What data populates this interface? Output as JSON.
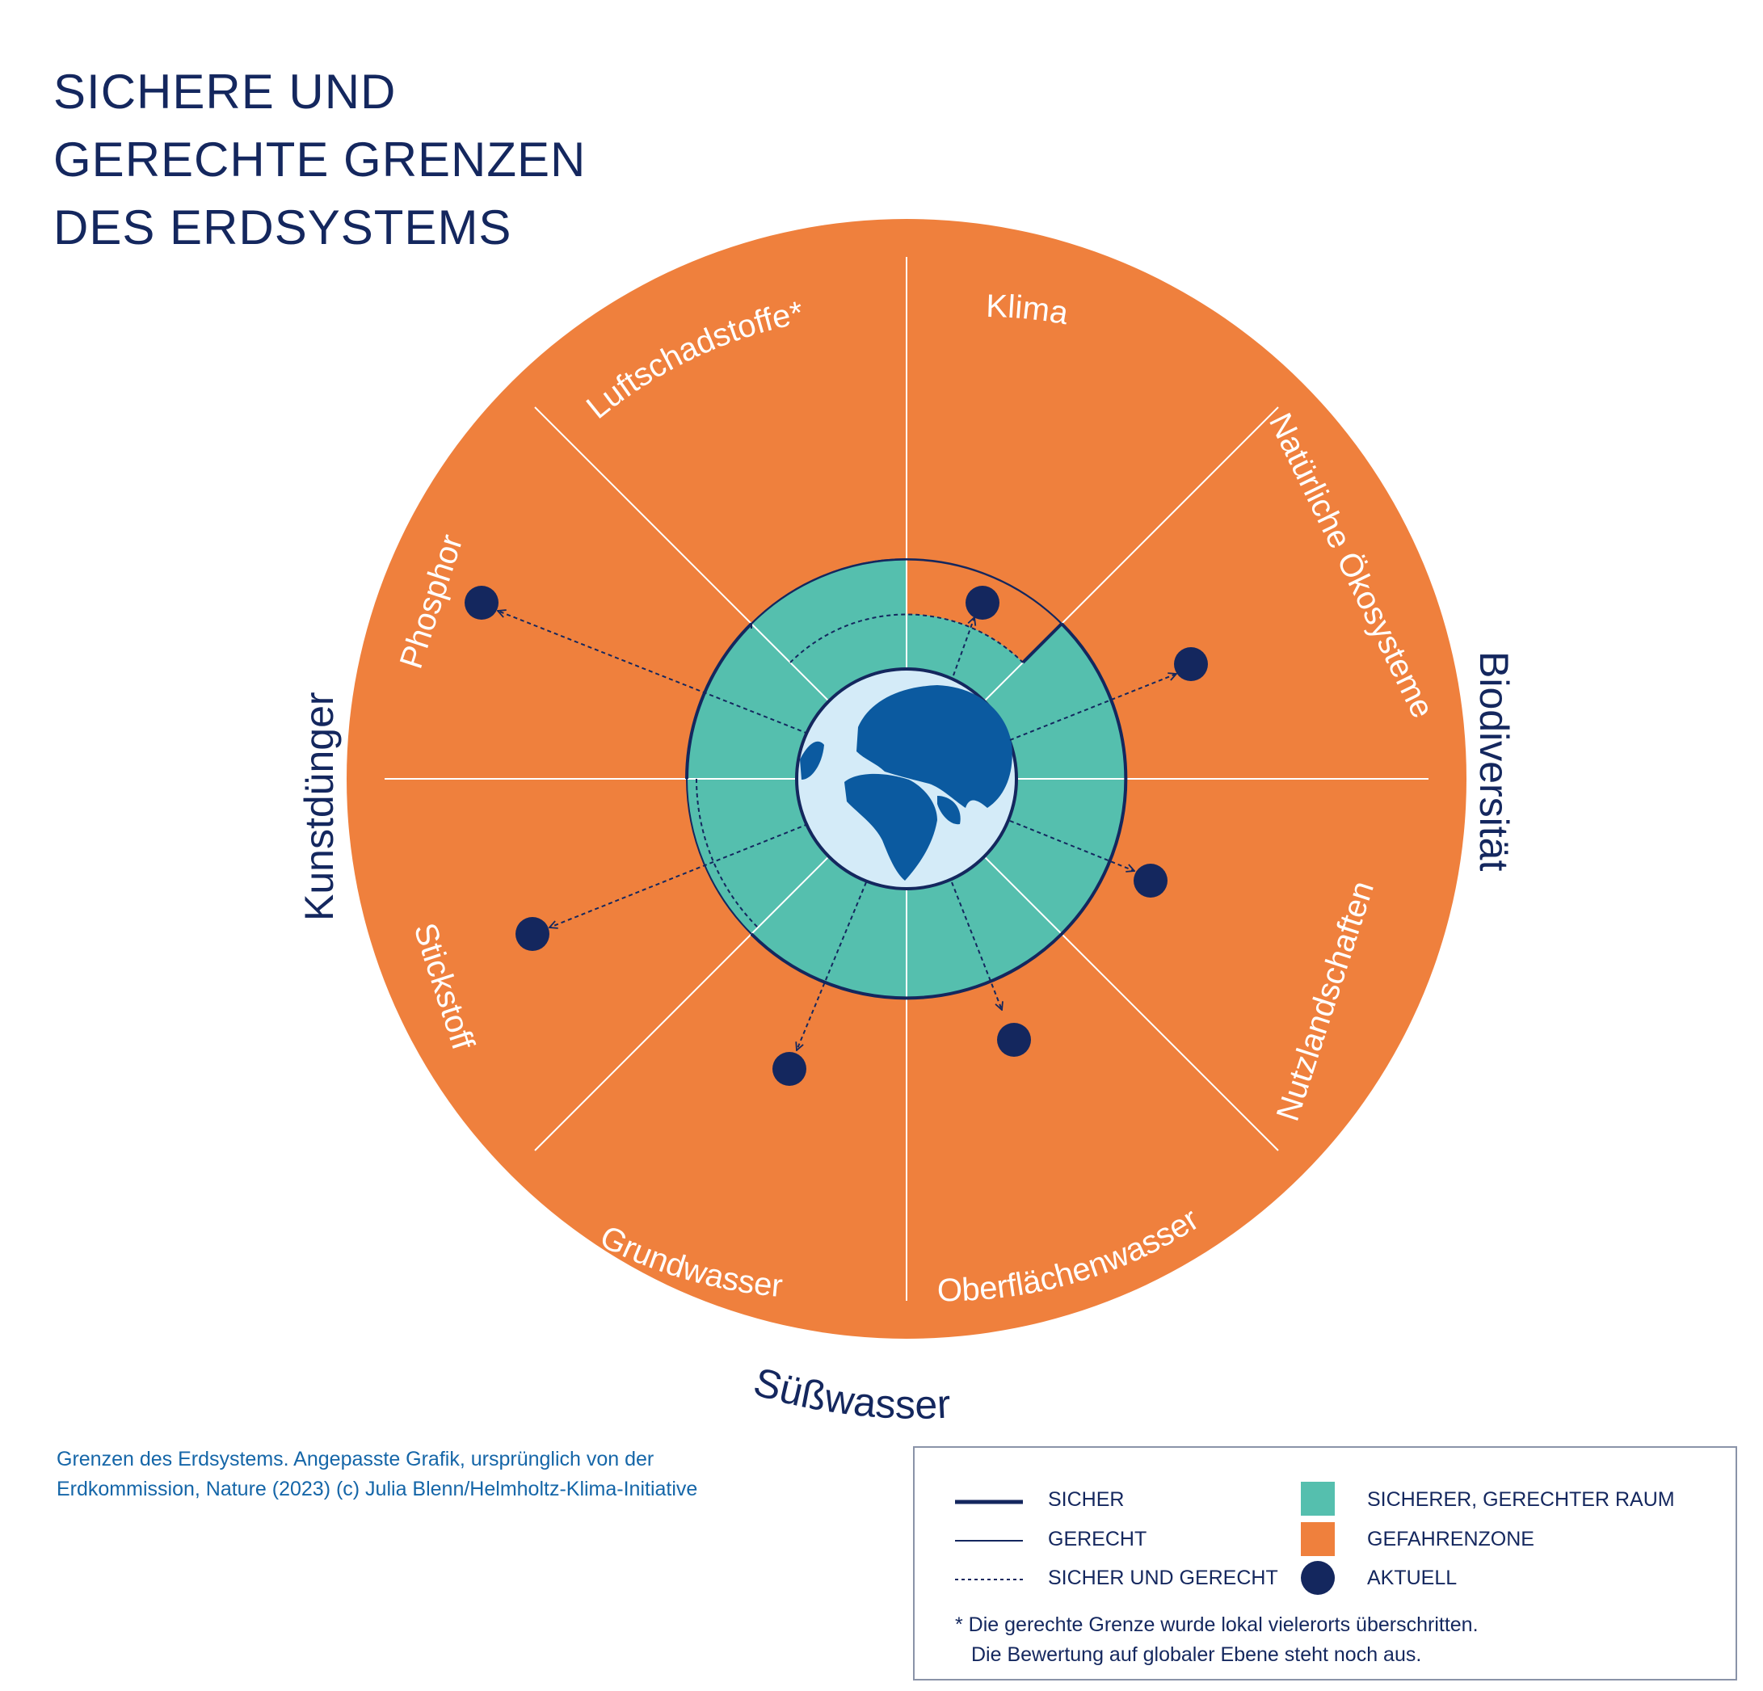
{
  "title": {
    "lines": [
      "SICHERE UND",
      "GERECHTE GRENZEN",
      "DES ERDSYSTEMS"
    ]
  },
  "colors": {
    "danger_zone": "#ef803d",
    "safe_just_space": "#55bfae",
    "navy": "#14275e",
    "globe_ocean": "#d4ebf8",
    "globe_land": "#0b5aa0",
    "source_text": "#1566a8"
  },
  "sectors": [
    {
      "label": "Luftschadstoffe*"
    },
    {
      "label": "Klima"
    },
    {
      "label": "Natürliche Ökosysteme"
    },
    {
      "label": "Nutzlandschaften"
    },
    {
      "label": "Oberflächenwasser"
    },
    {
      "label": "Grundwasser"
    },
    {
      "label": "Stickstoff"
    },
    {
      "label": "Phosphor"
    }
  ],
  "groups": [
    {
      "label": "Biodiversität"
    },
    {
      "label": "Süßwasser"
    },
    {
      "label": "Kunstdünger"
    }
  ],
  "source": {
    "line1": "Grenzen des Erdsystems. Angepasste Grafik, ursprünglich von der",
    "line2": "Erdkommission, Nature (2023) (c) Julia Blenn/Helmholtz-Klima-Initiative"
  },
  "legend": {
    "sicher": "SICHER",
    "gerecht": "GERECHT",
    "sicher_und_gerecht": "SICHER UND GERECHT",
    "safe_space": "SICHERER, GERECHTER RAUM",
    "danger": "GEFAHRENZONE",
    "aktuell": "AKTUELL",
    "note_line1": "* Die gerechte Grenze wurde lokal vielerorts überschritten.",
    "note_line2": "Die Bewertung auf globaler Ebene steht noch aus."
  }
}
